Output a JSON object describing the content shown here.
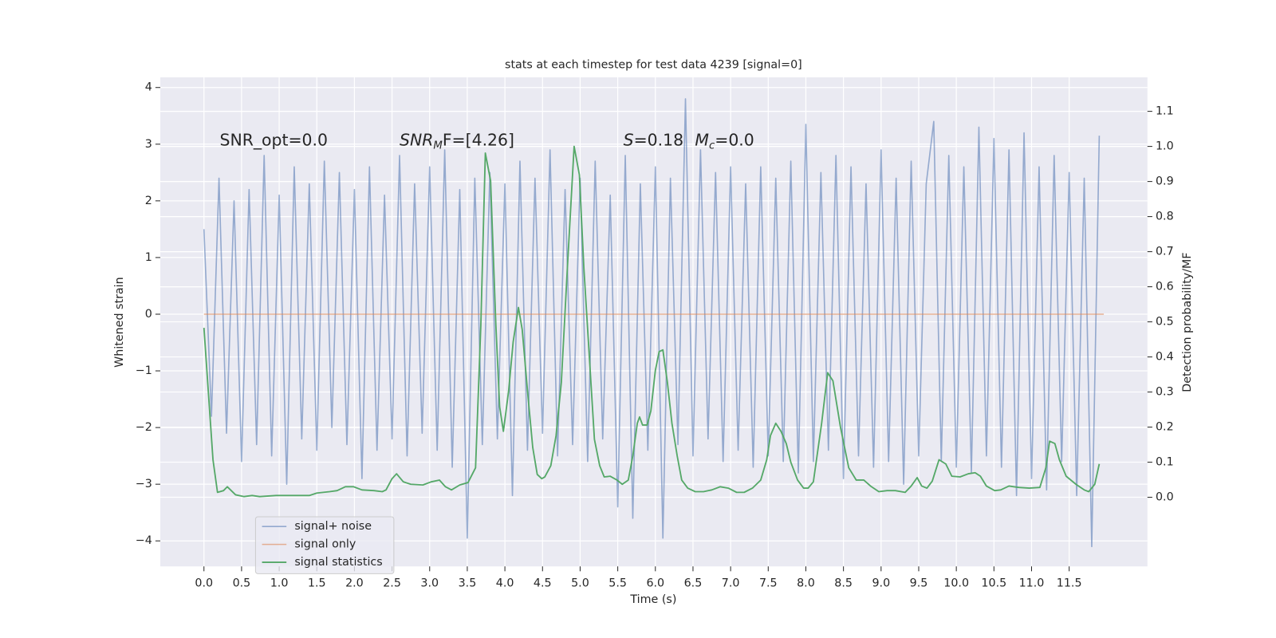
{
  "chart_data": {
    "type": "line",
    "title": "stats at each timestep for test data 4239 [signal=0]",
    "xlabel": "Time (s)",
    "ylabel": "Whitened strain",
    "y2label": "Detection probability/MF",
    "annotations": [
      [
        "SNR_opt=0.0"
      ],
      [
        "SNR",
        "M",
        "F=[4.26]"
      ],
      [
        "S",
        "=0.18",
        "M",
        "c",
        "=0.0"
      ]
    ],
    "xlim": [
      -0.58,
      12.54
    ],
    "xticks": [
      {
        "value": 0,
        "label": "0.0"
      },
      0.5,
      {
        "value": 1,
        "label": "1.0"
      },
      1.5,
      {
        "value": 2,
        "label": "2.0"
      },
      2.5,
      {
        "value": 3,
        "label": "3.0"
      },
      3.5,
      {
        "value": 4,
        "label": "4.0"
      },
      4.5,
      {
        "value": 5,
        "label": "5.0"
      },
      5.5,
      {
        "value": 6,
        "label": "6.0"
      },
      6.5,
      {
        "value": 7,
        "label": "7.0"
      },
      7.5,
      {
        "value": 8,
        "label": "8.0"
      },
      8.5,
      {
        "value": 9,
        "label": "9.0"
      },
      9.5,
      {
        "value": 10,
        "label": "10.0"
      },
      10.5,
      {
        "value": 11,
        "label": "11.0"
      },
      11.5
    ],
    "ylim": [
      -4.45,
      4.18
    ],
    "yticks": [
      {
        "value": -4,
        "label": "−4"
      },
      {
        "value": -3,
        "label": "−3"
      },
      {
        "value": -2,
        "label": "−2"
      },
      {
        "value": -1,
        "label": "−1"
      },
      0,
      1,
      2,
      3,
      4
    ],
    "y2lim": [
      -0.197,
      1.197
    ],
    "y2ticks": [
      {
        "value": 0,
        "label": "0.0"
      },
      0.1,
      0.2,
      0.3,
      0.4,
      0.5,
      0.6,
      0.7,
      0.8,
      0.9,
      {
        "value": 1,
        "label": "1.0"
      },
      1.1
    ],
    "grid": true,
    "series": [
      {
        "name": "signal+ noise",
        "color": "#4c72b0",
        "axis": "y",
        "x": [
          0,
          0.1,
          0.2,
          0.3,
          0.4,
          0.5,
          0.6,
          0.7,
          0.8,
          0.9,
          1,
          1.1,
          1.2,
          1.3,
          1.4,
          1.5,
          1.6,
          1.7,
          1.8,
          1.9,
          2,
          2.1,
          2.2,
          2.3,
          2.4,
          2.5,
          2.6,
          2.7,
          2.8,
          2.9,
          3,
          3.1,
          3.2,
          3.3,
          3.4,
          3.5,
          3.6,
          3.7,
          3.8,
          3.9,
          4,
          4.1,
          4.2,
          4.3,
          4.4,
          4.5,
          4.6,
          4.7,
          4.8,
          4.9,
          5,
          5.1,
          5.2,
          5.3,
          5.4,
          5.5,
          5.6,
          5.7,
          5.8,
          5.9,
          6,
          6.1,
          6.2,
          6.3,
          6.4,
          6.5,
          6.6,
          6.7,
          6.8,
          6.9,
          7,
          7.1,
          7.2,
          7.3,
          7.4,
          7.5,
          7.6,
          7.7,
          7.8,
          7.9,
          8,
          8.1,
          8.2,
          8.3,
          8.4,
          8.5,
          8.6,
          8.7,
          8.8,
          8.9,
          9,
          9.1,
          9.2,
          9.3,
          9.4,
          9.5,
          9.6,
          9.7,
          9.8,
          9.9,
          10,
          10.1,
          10.2,
          10.3,
          10.4,
          10.5,
          10.6,
          10.7,
          10.8,
          10.9,
          11,
          11.1,
          11.2,
          11.3,
          11.4,
          11.5,
          11.6,
          11.7,
          11.8,
          11.9
        ],
        "values": [
          1.5,
          -1.8,
          2.4,
          -2.1,
          2.0,
          -2.6,
          2.2,
          -2.3,
          2.8,
          -2.5,
          2.1,
          -3.0,
          2.6,
          -2.2,
          2.3,
          -2.4,
          2.7,
          -2.0,
          2.5,
          -2.3,
          2.2,
          -2.9,
          2.6,
          -2.4,
          2.1,
          -2.2,
          2.8,
          -2.5,
          2.3,
          -2.1,
          2.6,
          -2.4,
          2.9,
          -2.7,
          2.2,
          -3.95,
          2.4,
          -2.3,
          2.5,
          -2.2,
          2.3,
          -3.2,
          2.7,
          -2.4,
          2.4,
          -2.1,
          2.9,
          -2.5,
          2.2,
          -2.3,
          2.4,
          -2.6,
          2.7,
          -2.2,
          2.1,
          -3.4,
          2.8,
          -3.6,
          2.3,
          -2.4,
          2.6,
          -3.95,
          2.4,
          -2.3,
          3.8,
          -2.5,
          2.9,
          -2.2,
          2.5,
          -2.6,
          2.6,
          -2.4,
          2.3,
          -2.7,
          2.6,
          -2.5,
          2.4,
          -2.6,
          2.7,
          -2.8,
          3.35,
          -2.6,
          2.5,
          -2.4,
          2.8,
          -2.9,
          2.6,
          -2.5,
          2.3,
          -2.7,
          2.9,
          -2.6,
          2.4,
          -3.0,
          2.7,
          -2.5,
          2.3,
          3.4,
          -2.6,
          2.8,
          -2.7,
          2.6,
          -2.8,
          3.3,
          -2.5,
          3.1,
          -2.7,
          2.9,
          -3.2,
          3.2,
          -2.9,
          2.6,
          -3.1,
          2.8,
          -2.6,
          2.5,
          -3.2,
          2.4,
          -4.1,
          3.15
        ]
      },
      {
        "name": "signal only",
        "color": "#dd8452",
        "axis": "y",
        "x": [
          0,
          11.96
        ],
        "values": [
          0,
          0
        ]
      },
      {
        "name": "signal statistics",
        "color": "#55a868",
        "axis": "y2",
        "x": [
          0,
          0.12,
          0.18,
          0.26,
          0.31,
          0.42,
          0.53,
          0.64,
          0.74,
          0.96,
          1.18,
          1.4,
          1.5,
          1.67,
          1.77,
          1.88,
          1.99,
          2.1,
          2.26,
          2.37,
          2.42,
          2.5,
          2.56,
          2.65,
          2.75,
          2.91,
          3.02,
          3.13,
          3.21,
          3.29,
          3.4,
          3.51,
          3.61,
          3.68,
          3.74,
          3.81,
          3.88,
          3.93,
          3.98,
          4.05,
          4.11,
          4.18,
          4.23,
          4.3,
          4.37,
          4.43,
          4.49,
          4.53,
          4.61,
          4.68,
          4.75,
          4.83,
          4.89,
          4.92,
          4.99,
          5.05,
          5.13,
          5.19,
          5.26,
          5.32,
          5.4,
          5.49,
          5.56,
          5.64,
          5.7,
          5.76,
          5.79,
          5.83,
          5.89,
          5.94,
          6,
          6.05,
          6.1,
          6.16,
          6.22,
          6.29,
          6.35,
          6.43,
          6.53,
          6.64,
          6.75,
          6.86,
          6.97,
          7.08,
          7.18,
          7.29,
          7.4,
          7.48,
          7.53,
          7.6,
          7.67,
          7.74,
          7.8,
          7.89,
          7.97,
          8.03,
          8.1,
          8.21,
          8.29,
          8.36,
          8.46,
          8.57,
          8.67,
          8.77,
          8.86,
          8.97,
          9.08,
          9.19,
          9.32,
          9.4,
          9.48,
          9.54,
          9.61,
          9.68,
          9.77,
          9.86,
          9.94,
          10.05,
          10.16,
          10.25,
          10.32,
          10.4,
          10.51,
          10.59,
          10.7,
          10.83,
          10.97,
          11.11,
          11.19,
          11.24,
          11.31,
          11.37,
          11.46,
          11.59,
          11.7,
          11.76,
          11.84,
          11.9
        ],
        "values": [
          0.483,
          0.107,
          0.014,
          0.019,
          0.03,
          0.007,
          0.002,
          0.005,
          0.002,
          0.005,
          0.005,
          0.005,
          0.012,
          0.016,
          0.019,
          0.03,
          0.03,
          0.021,
          0.019,
          0.016,
          0.021,
          0.053,
          0.067,
          0.044,
          0.037,
          0.035,
          0.044,
          0.049,
          0.03,
          0.021,
          0.035,
          0.042,
          0.084,
          0.49,
          0.981,
          0.902,
          0.49,
          0.258,
          0.188,
          0.304,
          0.443,
          0.541,
          0.478,
          0.304,
          0.142,
          0.065,
          0.053,
          0.058,
          0.09,
          0.176,
          0.327,
          0.652,
          0.884,
          1.0,
          0.919,
          0.652,
          0.374,
          0.165,
          0.09,
          0.058,
          0.06,
          0.049,
          0.037,
          0.049,
          0.118,
          0.211,
          0.229,
          0.206,
          0.206,
          0.246,
          0.362,
          0.415,
          0.42,
          0.327,
          0.211,
          0.118,
          0.049,
          0.026,
          0.016,
          0.016,
          0.021,
          0.03,
          0.026,
          0.014,
          0.014,
          0.026,
          0.049,
          0.107,
          0.176,
          0.211,
          0.188,
          0.153,
          0.1,
          0.049,
          0.026,
          0.026,
          0.044,
          0.211,
          0.355,
          0.332,
          0.2,
          0.084,
          0.049,
          0.049,
          0.032,
          0.016,
          0.019,
          0.019,
          0.014,
          0.032,
          0.056,
          0.032,
          0.026,
          0.046,
          0.107,
          0.095,
          0.06,
          0.058,
          0.067,
          0.07,
          0.06,
          0.032,
          0.019,
          0.021,
          0.032,
          0.028,
          0.026,
          0.028,
          0.084,
          0.16,
          0.153,
          0.107,
          0.06,
          0.037,
          0.021,
          0.016,
          0.037,
          0.095
        ]
      }
    ]
  }
}
